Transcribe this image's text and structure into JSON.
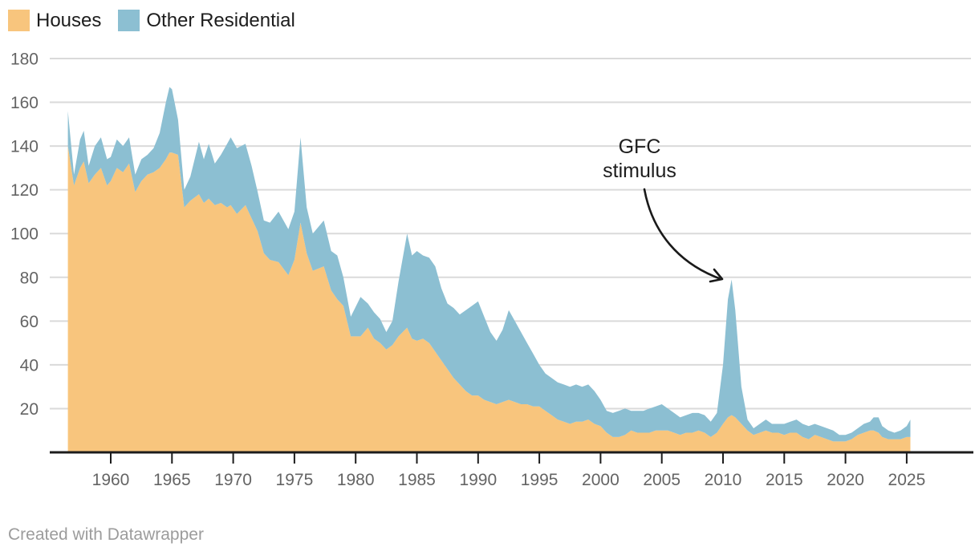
{
  "legend": {
    "items": [
      {
        "label": "Houses",
        "color": "#f8c57d"
      },
      {
        "label": "Other Residential",
        "color": "#8cbfd2"
      }
    ]
  },
  "annotation": {
    "line1": "GFC",
    "line2": "stimulus"
  },
  "footer": {
    "credit": "Created with Datawrapper"
  },
  "colors": {
    "houses": "#f8c57d",
    "other_residential": "#8cbfd2",
    "grid": "#dadada",
    "axis_line": "#1c1c1c",
    "axis_label": "#646464",
    "annotation": "#1a1a1a",
    "footer_text": "#9c9c9c",
    "background": "#ffffff"
  },
  "chart_data": {
    "type": "area",
    "stacked": true,
    "title": "",
    "xlabel": "",
    "ylabel": "",
    "grid": true,
    "legend_position": "top-left",
    "xlim": [
      1956.2,
      2025.5
    ],
    "ylim": [
      0,
      180
    ],
    "xticks": [
      1960,
      1965,
      1970,
      1975,
      1980,
      1985,
      1990,
      1995,
      2000,
      2005,
      2010,
      2015,
      2020,
      2025
    ],
    "yticks": [
      20,
      40,
      60,
      80,
      100,
      120,
      140,
      160,
      180
    ],
    "annotation_target": {
      "year": 2010.7,
      "value": 80
    },
    "x": [
      1956.5,
      1957,
      1957.5,
      1957.8,
      1958.2,
      1958.7,
      1959.2,
      1959.7,
      1960,
      1960.5,
      1961,
      1961.5,
      1962,
      1962.5,
      1963,
      1963.5,
      1964,
      1964.5,
      1964.8,
      1965,
      1965.5,
      1966,
      1966.5,
      1967.2,
      1967.6,
      1968,
      1968.5,
      1969,
      1969.5,
      1969.8,
      1970.3,
      1971,
      1971.5,
      1972,
      1972.5,
      1973,
      1973.7,
      1974.5,
      1975,
      1975.5,
      1976,
      1976.5,
      1977.4,
      1978,
      1978.5,
      1979,
      1979.6,
      1980.4,
      1981,
      1981.5,
      1982,
      1982.5,
      1983,
      1983.5,
      1984.2,
      1984.6,
      1985,
      1985.5,
      1986,
      1986.5,
      1987,
      1987.5,
      1988,
      1988.5,
      1989,
      1989.5,
      1990,
      1990.5,
      1991,
      1991.5,
      1992,
      1992.5,
      1993,
      1993.5,
      1994,
      1994.5,
      1995,
      1995.5,
      1996,
      1996.5,
      1997,
      1997.5,
      1998,
      1998.5,
      1999,
      1999.5,
      2000,
      2000.5,
      2001,
      2001.5,
      2002,
      2002.5,
      2003,
      2003.5,
      2004,
      2004.5,
      2005,
      2005.5,
      2006,
      2006.5,
      2007,
      2007.5,
      2008,
      2008.5,
      2009,
      2009.5,
      2010,
      2010.4,
      2010.7,
      2011,
      2011.5,
      2012,
      2012.5,
      2013,
      2013.5,
      2014,
      2014.5,
      2015,
      2015.5,
      2016,
      2016.5,
      2017,
      2017.5,
      2018,
      2018.5,
      2019,
      2019.5,
      2020,
      2020.5,
      2021,
      2021.5,
      2022,
      2022.3,
      2022.7,
      2023,
      2023.5,
      2024,
      2024.5,
      2025,
      2025.3
    ],
    "series": [
      {
        "name": "Houses",
        "color": "#f8c57d",
        "values": [
          140,
          122,
          130,
          133,
          123,
          127,
          130,
          122,
          124,
          130,
          128,
          132,
          119,
          124,
          127,
          128,
          130,
          134,
          137,
          137,
          136,
          112,
          115,
          118,
          114,
          116,
          113,
          114,
          112,
          113,
          109,
          113,
          107,
          101,
          91,
          88,
          87,
          81,
          88,
          105,
          91,
          83,
          85,
          74,
          70,
          67,
          53,
          53,
          57,
          52,
          50,
          47,
          49,
          53,
          57,
          52,
          51,
          52,
          50,
          46,
          42,
          38,
          34,
          31,
          28,
          26,
          26,
          24,
          23,
          22,
          23,
          24,
          23,
          22,
          22,
          21,
          21,
          19,
          17,
          15,
          14,
          13,
          14,
          14,
          15,
          13,
          12,
          9,
          7,
          7,
          8,
          10,
          9,
          9,
          9,
          10,
          10,
          10,
          9,
          8,
          9,
          9,
          10,
          9,
          7,
          9,
          13,
          16,
          17,
          16,
          13,
          10,
          8,
          9,
          10,
          9,
          9,
          8,
          9,
          9,
          7,
          6,
          8,
          7,
          6,
          5,
          5,
          5,
          6,
          8,
          9,
          10,
          10,
          9,
          7,
          6,
          6,
          6,
          7,
          7
        ]
      },
      {
        "name": "Other Residential",
        "color": "#8cbfd2",
        "values": [
          16,
          5,
          13,
          14,
          8,
          13,
          14,
          12,
          11,
          13,
          12,
          12,
          8,
          10,
          9,
          11,
          16,
          26,
          30,
          29,
          16,
          8,
          11,
          24,
          20,
          25,
          19,
          22,
          29,
          31,
          30,
          28,
          24,
          18,
          15,
          17,
          23,
          21,
          22,
          39,
          21,
          17,
          21,
          18,
          20,
          13,
          9,
          18,
          11,
          12,
          11,
          8,
          11,
          25,
          43,
          38,
          41,
          38,
          39,
          39,
          33,
          30,
          32,
          32,
          37,
          41,
          43,
          38,
          32,
          29,
          33,
          41,
          37,
          33,
          28,
          24,
          19,
          17,
          17,
          17,
          17,
          17,
          17,
          16,
          16,
          15,
          12,
          10,
          11,
          12,
          12,
          9,
          10,
          10,
          11,
          11,
          12,
          10,
          9,
          8,
          8,
          9,
          8,
          8,
          7,
          9,
          27,
          54,
          62,
          49,
          17,
          5,
          3,
          4,
          5,
          4,
          4,
          5,
          5,
          6,
          6,
          6,
          5,
          5,
          5,
          5,
          3,
          3,
          3,
          3,
          4,
          4,
          6,
          7,
          5,
          4,
          3,
          4,
          5,
          8
        ]
      }
    ]
  }
}
